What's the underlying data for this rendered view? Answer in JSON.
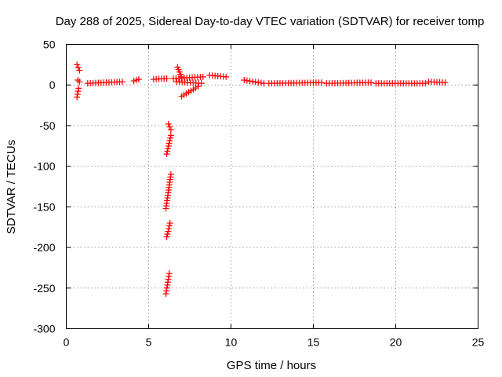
{
  "chart_data": {
    "type": "scatter",
    "title": "Day 288 of 2025, Sidereal Day-to-day VTEC variation (SDTVAR) for receiver tomp",
    "xlabel": "GPS time / hours",
    "ylabel": "SDTVAR / TECUs",
    "xlim": [
      0,
      25
    ],
    "ylim": [
      -300,
      50
    ],
    "xticks": [
      0,
      5,
      10,
      15,
      20,
      25
    ],
    "yticks": [
      50,
      0,
      -50,
      -100,
      -150,
      -200,
      -250,
      -300
    ],
    "grid": true,
    "marker": "plus",
    "color": "#ff0000",
    "series": [
      {
        "name": "SDTVAR",
        "segments": [
          {
            "x": [
              0.65,
              0.8
            ],
            "y": [
              25,
              18
            ]
          },
          {
            "x": [
              0.7,
              0.8
            ],
            "y": [
              6,
              4
            ]
          },
          {
            "x": [
              0.65,
              0.75
            ],
            "y": [
              -15,
              -4
            ]
          },
          {
            "x": [
              1.3,
              3.4
            ],
            "y": [
              2,
              4
            ]
          },
          {
            "x": [
              4.1,
              4.4
            ],
            "y": [
              5,
              7
            ]
          },
          {
            "x": [
              5.3,
              6.1
            ],
            "y": [
              7,
              8
            ]
          },
          {
            "x": [
              6.5,
              8.3
            ],
            "y": [
              8,
              10
            ]
          },
          {
            "x": [
              6.7,
              8.2
            ],
            "y": [
              4,
              2
            ]
          },
          {
            "x": [
              6.75,
              7.0
            ],
            "y": [
              22,
              10
            ]
          },
          {
            "x": [
              7.0,
              8.0
            ],
            "y": [
              -14,
              -2
            ]
          },
          {
            "x": [
              8.7,
              9.7
            ],
            "y": [
              12,
              10
            ]
          },
          {
            "x": [
              10.8,
              12.0
            ],
            "y": [
              6,
              2
            ]
          },
          {
            "x": [
              12.3,
              15.5
            ],
            "y": [
              2,
              3
            ]
          },
          {
            "x": [
              15.8,
              18.5
            ],
            "y": [
              2,
              3
            ]
          },
          {
            "x": [
              18.8,
              21.8
            ],
            "y": [
              2,
              2
            ]
          },
          {
            "x": [
              22.0,
              23.0
            ],
            "y": [
              4,
              3
            ]
          },
          {
            "x": [
              6.2,
              6.35
            ],
            "y": [
              -48,
              -55
            ]
          },
          {
            "x": [
              6.1,
              6.35
            ],
            "y": [
              -85,
              -62
            ]
          },
          {
            "x": [
              6.05,
              6.35
            ],
            "y": [
              -152,
              -110
            ]
          },
          {
            "x": [
              6.1,
              6.3
            ],
            "y": [
              -187,
              -170
            ]
          },
          {
            "x": [
              6.05,
              6.25
            ],
            "y": [
              -257,
              -232
            ]
          }
        ]
      }
    ]
  }
}
